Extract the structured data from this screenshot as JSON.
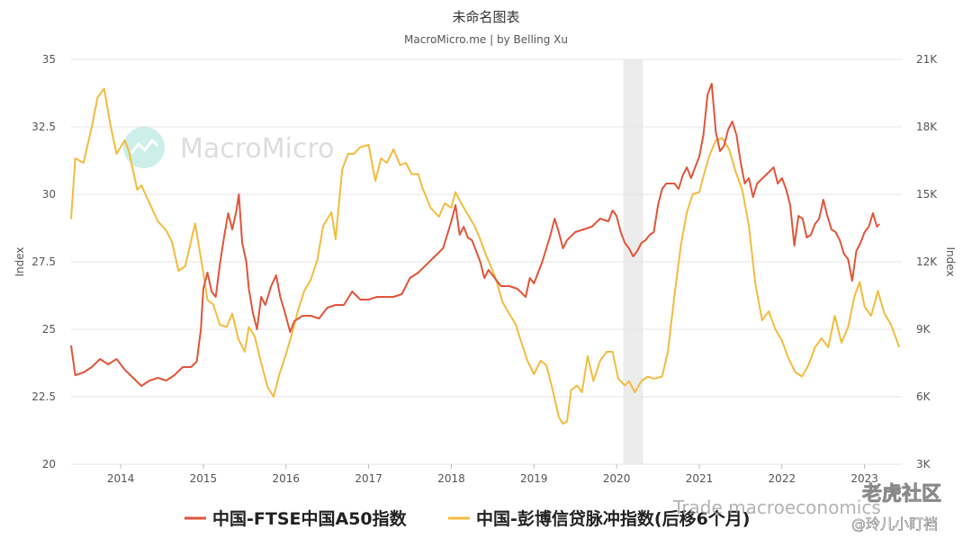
{
  "chart_data": {
    "type": "line",
    "title": "未命名图表",
    "subtitle": "MacroMicro.me | by Belling Xu",
    "watermark": "MacroMicro",
    "left_axis_label": "Index",
    "right_axis_label": "Index",
    "x_ticks": [
      "2014",
      "2015",
      "2016",
      "2017",
      "2018",
      "2019",
      "2020",
      "2021",
      "2022",
      "2023"
    ],
    "left_ticks": [
      "20",
      "22.5",
      "25",
      "27.5",
      "30",
      "32.5",
      "35"
    ],
    "right_ticks": [
      "3K",
      "6K",
      "9K",
      "12K",
      "15K",
      "18K",
      "21K"
    ],
    "left_range": [
      20,
      35
    ],
    "right_range": [
      3000,
      21000
    ],
    "x_range": [
      2013.4,
      2023.45
    ],
    "grid": true,
    "legend_position": "bottom",
    "shaded_period": [
      2020.08,
      2020.32
    ],
    "colors": {
      "ftse": "#e0553a",
      "credit": "#f2bc3e",
      "shade": "#ececec",
      "grid": "#e6e6e6"
    },
    "series": [
      {
        "name": "中国-FTSE中国A50指数",
        "axis": "left",
        "color": "#e0553a",
        "points": [
          [
            2013.4,
            24.4
          ],
          [
            2013.45,
            23.3
          ],
          [
            2013.55,
            23.4
          ],
          [
            2013.65,
            23.6
          ],
          [
            2013.75,
            23.9
          ],
          [
            2013.85,
            23.7
          ],
          [
            2013.95,
            23.9
          ],
          [
            2014.05,
            23.5
          ],
          [
            2014.15,
            23.2
          ],
          [
            2014.25,
            22.9
          ],
          [
            2014.35,
            23.1
          ],
          [
            2014.45,
            23.2
          ],
          [
            2014.55,
            23.1
          ],
          [
            2014.65,
            23.3
          ],
          [
            2014.75,
            23.6
          ],
          [
            2014.85,
            23.6
          ],
          [
            2014.92,
            23.8
          ],
          [
            2014.97,
            25.0
          ],
          [
            2015.0,
            26.5
          ],
          [
            2015.05,
            27.1
          ],
          [
            2015.1,
            26.4
          ],
          [
            2015.15,
            26.2
          ],
          [
            2015.2,
            27.4
          ],
          [
            2015.25,
            28.4
          ],
          [
            2015.3,
            29.3
          ],
          [
            2015.35,
            28.7
          ],
          [
            2015.4,
            29.4
          ],
          [
            2015.43,
            30.0
          ],
          [
            2015.47,
            28.2
          ],
          [
            2015.52,
            27.5
          ],
          [
            2015.55,
            26.5
          ],
          [
            2015.6,
            25.6
          ],
          [
            2015.65,
            25.0
          ],
          [
            2015.7,
            26.2
          ],
          [
            2015.75,
            25.9
          ],
          [
            2015.82,
            26.6
          ],
          [
            2015.88,
            27.0
          ],
          [
            2015.93,
            26.2
          ],
          [
            2015.98,
            25.7
          ],
          [
            2016.05,
            24.9
          ],
          [
            2016.1,
            25.3
          ],
          [
            2016.2,
            25.5
          ],
          [
            2016.3,
            25.5
          ],
          [
            2016.4,
            25.4
          ],
          [
            2016.5,
            25.8
          ],
          [
            2016.6,
            25.9
          ],
          [
            2016.7,
            25.9
          ],
          [
            2016.8,
            26.4
          ],
          [
            2016.9,
            26.1
          ],
          [
            2017.0,
            26.1
          ],
          [
            2017.1,
            26.2
          ],
          [
            2017.2,
            26.2
          ],
          [
            2017.3,
            26.2
          ],
          [
            2017.4,
            26.3
          ],
          [
            2017.5,
            26.9
          ],
          [
            2017.6,
            27.1
          ],
          [
            2017.7,
            27.4
          ],
          [
            2017.8,
            27.7
          ],
          [
            2017.9,
            28.0
          ],
          [
            2017.95,
            28.5
          ],
          [
            2018.0,
            29.0
          ],
          [
            2018.05,
            29.6
          ],
          [
            2018.1,
            28.5
          ],
          [
            2018.15,
            28.8
          ],
          [
            2018.2,
            28.4
          ],
          [
            2018.25,
            28.3
          ],
          [
            2018.3,
            27.9
          ],
          [
            2018.35,
            27.5
          ],
          [
            2018.4,
            26.9
          ],
          [
            2018.45,
            27.2
          ],
          [
            2018.5,
            27.0
          ],
          [
            2018.55,
            26.8
          ],
          [
            2018.6,
            26.6
          ],
          [
            2018.7,
            26.6
          ],
          [
            2018.8,
            26.5
          ],
          [
            2018.9,
            26.2
          ],
          [
            2018.95,
            26.9
          ],
          [
            2019.0,
            26.7
          ],
          [
            2019.1,
            27.5
          ],
          [
            2019.15,
            28.0
          ],
          [
            2019.2,
            28.5
          ],
          [
            2019.25,
            29.1
          ],
          [
            2019.3,
            28.6
          ],
          [
            2019.35,
            28.0
          ],
          [
            2019.4,
            28.3
          ],
          [
            2019.5,
            28.6
          ],
          [
            2019.6,
            28.7
          ],
          [
            2019.7,
            28.8
          ],
          [
            2019.8,
            29.1
          ],
          [
            2019.9,
            29.0
          ],
          [
            2019.95,
            29.4
          ],
          [
            2020.0,
            29.2
          ],
          [
            2020.05,
            28.6
          ],
          [
            2020.1,
            28.2
          ],
          [
            2020.15,
            28.0
          ],
          [
            2020.2,
            27.7
          ],
          [
            2020.25,
            27.9
          ],
          [
            2020.3,
            28.2
          ],
          [
            2020.35,
            28.3
          ],
          [
            2020.4,
            28.5
          ],
          [
            2020.45,
            28.6
          ],
          [
            2020.5,
            29.6
          ],
          [
            2020.55,
            30.2
          ],
          [
            2020.6,
            30.4
          ],
          [
            2020.7,
            30.4
          ],
          [
            2020.75,
            30.2
          ],
          [
            2020.8,
            30.7
          ],
          [
            2020.85,
            31.0
          ],
          [
            2020.9,
            30.6
          ],
          [
            2020.95,
            31.0
          ],
          [
            2021.0,
            31.4
          ],
          [
            2021.05,
            32.2
          ],
          [
            2021.1,
            33.7
          ],
          [
            2021.15,
            34.1
          ],
          [
            2021.2,
            32.3
          ],
          [
            2021.25,
            31.6
          ],
          [
            2021.3,
            31.8
          ],
          [
            2021.35,
            32.4
          ],
          [
            2021.4,
            32.7
          ],
          [
            2021.45,
            32.2
          ],
          [
            2021.5,
            31.2
          ],
          [
            2021.55,
            30.4
          ],
          [
            2021.6,
            30.6
          ],
          [
            2021.65,
            29.9
          ],
          [
            2021.7,
            30.4
          ],
          [
            2021.8,
            30.7
          ],
          [
            2021.9,
            31.0
          ],
          [
            2021.95,
            30.4
          ],
          [
            2022.0,
            30.6
          ],
          [
            2022.05,
            30.2
          ],
          [
            2022.1,
            29.6
          ],
          [
            2022.15,
            28.1
          ],
          [
            2022.2,
            29.2
          ],
          [
            2022.25,
            29.1
          ],
          [
            2022.3,
            28.4
          ],
          [
            2022.35,
            28.5
          ],
          [
            2022.4,
            28.9
          ],
          [
            2022.45,
            29.1
          ],
          [
            2022.5,
            29.8
          ],
          [
            2022.55,
            29.2
          ],
          [
            2022.6,
            28.7
          ],
          [
            2022.65,
            28.6
          ],
          [
            2022.7,
            28.3
          ],
          [
            2022.75,
            27.8
          ],
          [
            2022.8,
            27.6
          ],
          [
            2022.85,
            26.8
          ],
          [
            2022.9,
            27.9
          ],
          [
            2022.95,
            28.2
          ],
          [
            2023.0,
            28.6
          ],
          [
            2023.05,
            28.8
          ],
          [
            2023.1,
            29.3
          ],
          [
            2023.15,
            28.8
          ],
          [
            2023.18,
            28.9
          ]
        ]
      },
      {
        "name": "中国-彭博信贷脉冲指数(后移6个月)",
        "axis": "right",
        "color": "#f2bc3e",
        "points": [
          [
            2013.4,
            13900
          ],
          [
            2013.45,
            16600
          ],
          [
            2013.55,
            16400
          ],
          [
            2013.65,
            18000
          ],
          [
            2013.72,
            19300
          ],
          [
            2013.8,
            19700
          ],
          [
            2013.88,
            18000
          ],
          [
            2013.95,
            16800
          ],
          [
            2014.05,
            17400
          ],
          [
            2014.1,
            16900
          ],
          [
            2014.2,
            15200
          ],
          [
            2014.25,
            15400
          ],
          [
            2014.35,
            14600
          ],
          [
            2014.45,
            13800
          ],
          [
            2014.55,
            13400
          ],
          [
            2014.62,
            12900
          ],
          [
            2014.7,
            11600
          ],
          [
            2014.78,
            11800
          ],
          [
            2014.85,
            12900
          ],
          [
            2014.9,
            13700
          ],
          [
            2014.95,
            12600
          ],
          [
            2015.0,
            11500
          ],
          [
            2015.05,
            10300
          ],
          [
            2015.12,
            10100
          ],
          [
            2015.2,
            9200
          ],
          [
            2015.28,
            9100
          ],
          [
            2015.35,
            9700
          ],
          [
            2015.42,
            8600
          ],
          [
            2015.5,
            8000
          ],
          [
            2015.55,
            9100
          ],
          [
            2015.62,
            8700
          ],
          [
            2015.7,
            7500
          ],
          [
            2015.78,
            6400
          ],
          [
            2015.85,
            6000
          ],
          [
            2015.92,
            7000
          ],
          [
            2016.0,
            7900
          ],
          [
            2016.08,
            8900
          ],
          [
            2016.15,
            9900
          ],
          [
            2016.22,
            10700
          ],
          [
            2016.3,
            11200
          ],
          [
            2016.38,
            12100
          ],
          [
            2016.45,
            13600
          ],
          [
            2016.55,
            14200
          ],
          [
            2016.6,
            13000
          ],
          [
            2016.68,
            16100
          ],
          [
            2016.75,
            16800
          ],
          [
            2016.82,
            16800
          ],
          [
            2016.9,
            17100
          ],
          [
            2017.0,
            17200
          ],
          [
            2017.08,
            15600
          ],
          [
            2017.15,
            16600
          ],
          [
            2017.22,
            16400
          ],
          [
            2017.3,
            17000
          ],
          [
            2017.38,
            16300
          ],
          [
            2017.45,
            16400
          ],
          [
            2017.52,
            15900
          ],
          [
            2017.6,
            15900
          ],
          [
            2017.65,
            15300
          ],
          [
            2017.75,
            14400
          ],
          [
            2017.85,
            14000
          ],
          [
            2017.92,
            14600
          ],
          [
            2018.0,
            14400
          ],
          [
            2018.05,
            15100
          ],
          [
            2018.12,
            14600
          ],
          [
            2018.2,
            14100
          ],
          [
            2018.28,
            13600
          ],
          [
            2018.35,
            13000
          ],
          [
            2018.42,
            12300
          ],
          [
            2018.5,
            11600
          ],
          [
            2018.55,
            11100
          ],
          [
            2018.62,
            10200
          ],
          [
            2018.7,
            9700
          ],
          [
            2018.78,
            9200
          ],
          [
            2018.85,
            8400
          ],
          [
            2018.92,
            7600
          ],
          [
            2019.0,
            7000
          ],
          [
            2019.08,
            7600
          ],
          [
            2019.15,
            7400
          ],
          [
            2019.22,
            6400
          ],
          [
            2019.3,
            5100
          ],
          [
            2019.35,
            4800
          ],
          [
            2019.4,
            4900
          ],
          [
            2019.45,
            6300
          ],
          [
            2019.52,
            6500
          ],
          [
            2019.58,
            6200
          ],
          [
            2019.65,
            7800
          ],
          [
            2019.72,
            6700
          ],
          [
            2019.8,
            7600
          ],
          [
            2019.88,
            8000
          ],
          [
            2019.95,
            8000
          ],
          [
            2020.02,
            6800
          ],
          [
            2020.1,
            6500
          ],
          [
            2020.15,
            6700
          ],
          [
            2020.22,
            6200
          ],
          [
            2020.3,
            6700
          ],
          [
            2020.38,
            6900
          ],
          [
            2020.45,
            6800
          ],
          [
            2020.55,
            6900
          ],
          [
            2020.62,
            8000
          ],
          [
            2020.7,
            10500
          ],
          [
            2020.78,
            12800
          ],
          [
            2020.85,
            14200
          ],
          [
            2020.92,
            15000
          ],
          [
            2021.0,
            15100
          ],
          [
            2021.05,
            15800
          ],
          [
            2021.12,
            16700
          ],
          [
            2021.2,
            17400
          ],
          [
            2021.28,
            17500
          ],
          [
            2021.36,
            17000
          ],
          [
            2021.44,
            16000
          ],
          [
            2021.52,
            15200
          ],
          [
            2021.6,
            13600
          ],
          [
            2021.68,
            11000
          ],
          [
            2021.76,
            9400
          ],
          [
            2021.84,
            9800
          ],
          [
            2021.92,
            9000
          ],
          [
            2022.0,
            8500
          ],
          [
            2022.08,
            7700
          ],
          [
            2022.16,
            7100
          ],
          [
            2022.24,
            6900
          ],
          [
            2022.32,
            7400
          ],
          [
            2022.4,
            8200
          ],
          [
            2022.48,
            8600
          ],
          [
            2022.56,
            8200
          ],
          [
            2022.64,
            9600
          ],
          [
            2022.72,
            8400
          ],
          [
            2022.8,
            9100
          ],
          [
            2022.88,
            10500
          ],
          [
            2022.94,
            11100
          ],
          [
            2023.0,
            10000
          ],
          [
            2023.08,
            9600
          ],
          [
            2023.16,
            10700
          ],
          [
            2023.24,
            9700
          ],
          [
            2023.32,
            9200
          ],
          [
            2023.42,
            8200
          ]
        ]
      }
    ]
  },
  "legend": {
    "items": [
      {
        "label": "中国-FTSE中国A50指数",
        "color": "#e0553a"
      },
      {
        "label": "中国-彭博信贷脉冲指数(后移6个月)",
        "color": "#f2bc3e"
      }
    ]
  },
  "overlay": {
    "source_watermark": "Trade macroeconomics",
    "brand_watermark": "老虎社区",
    "author_handle": "@玲儿小盯裆"
  }
}
